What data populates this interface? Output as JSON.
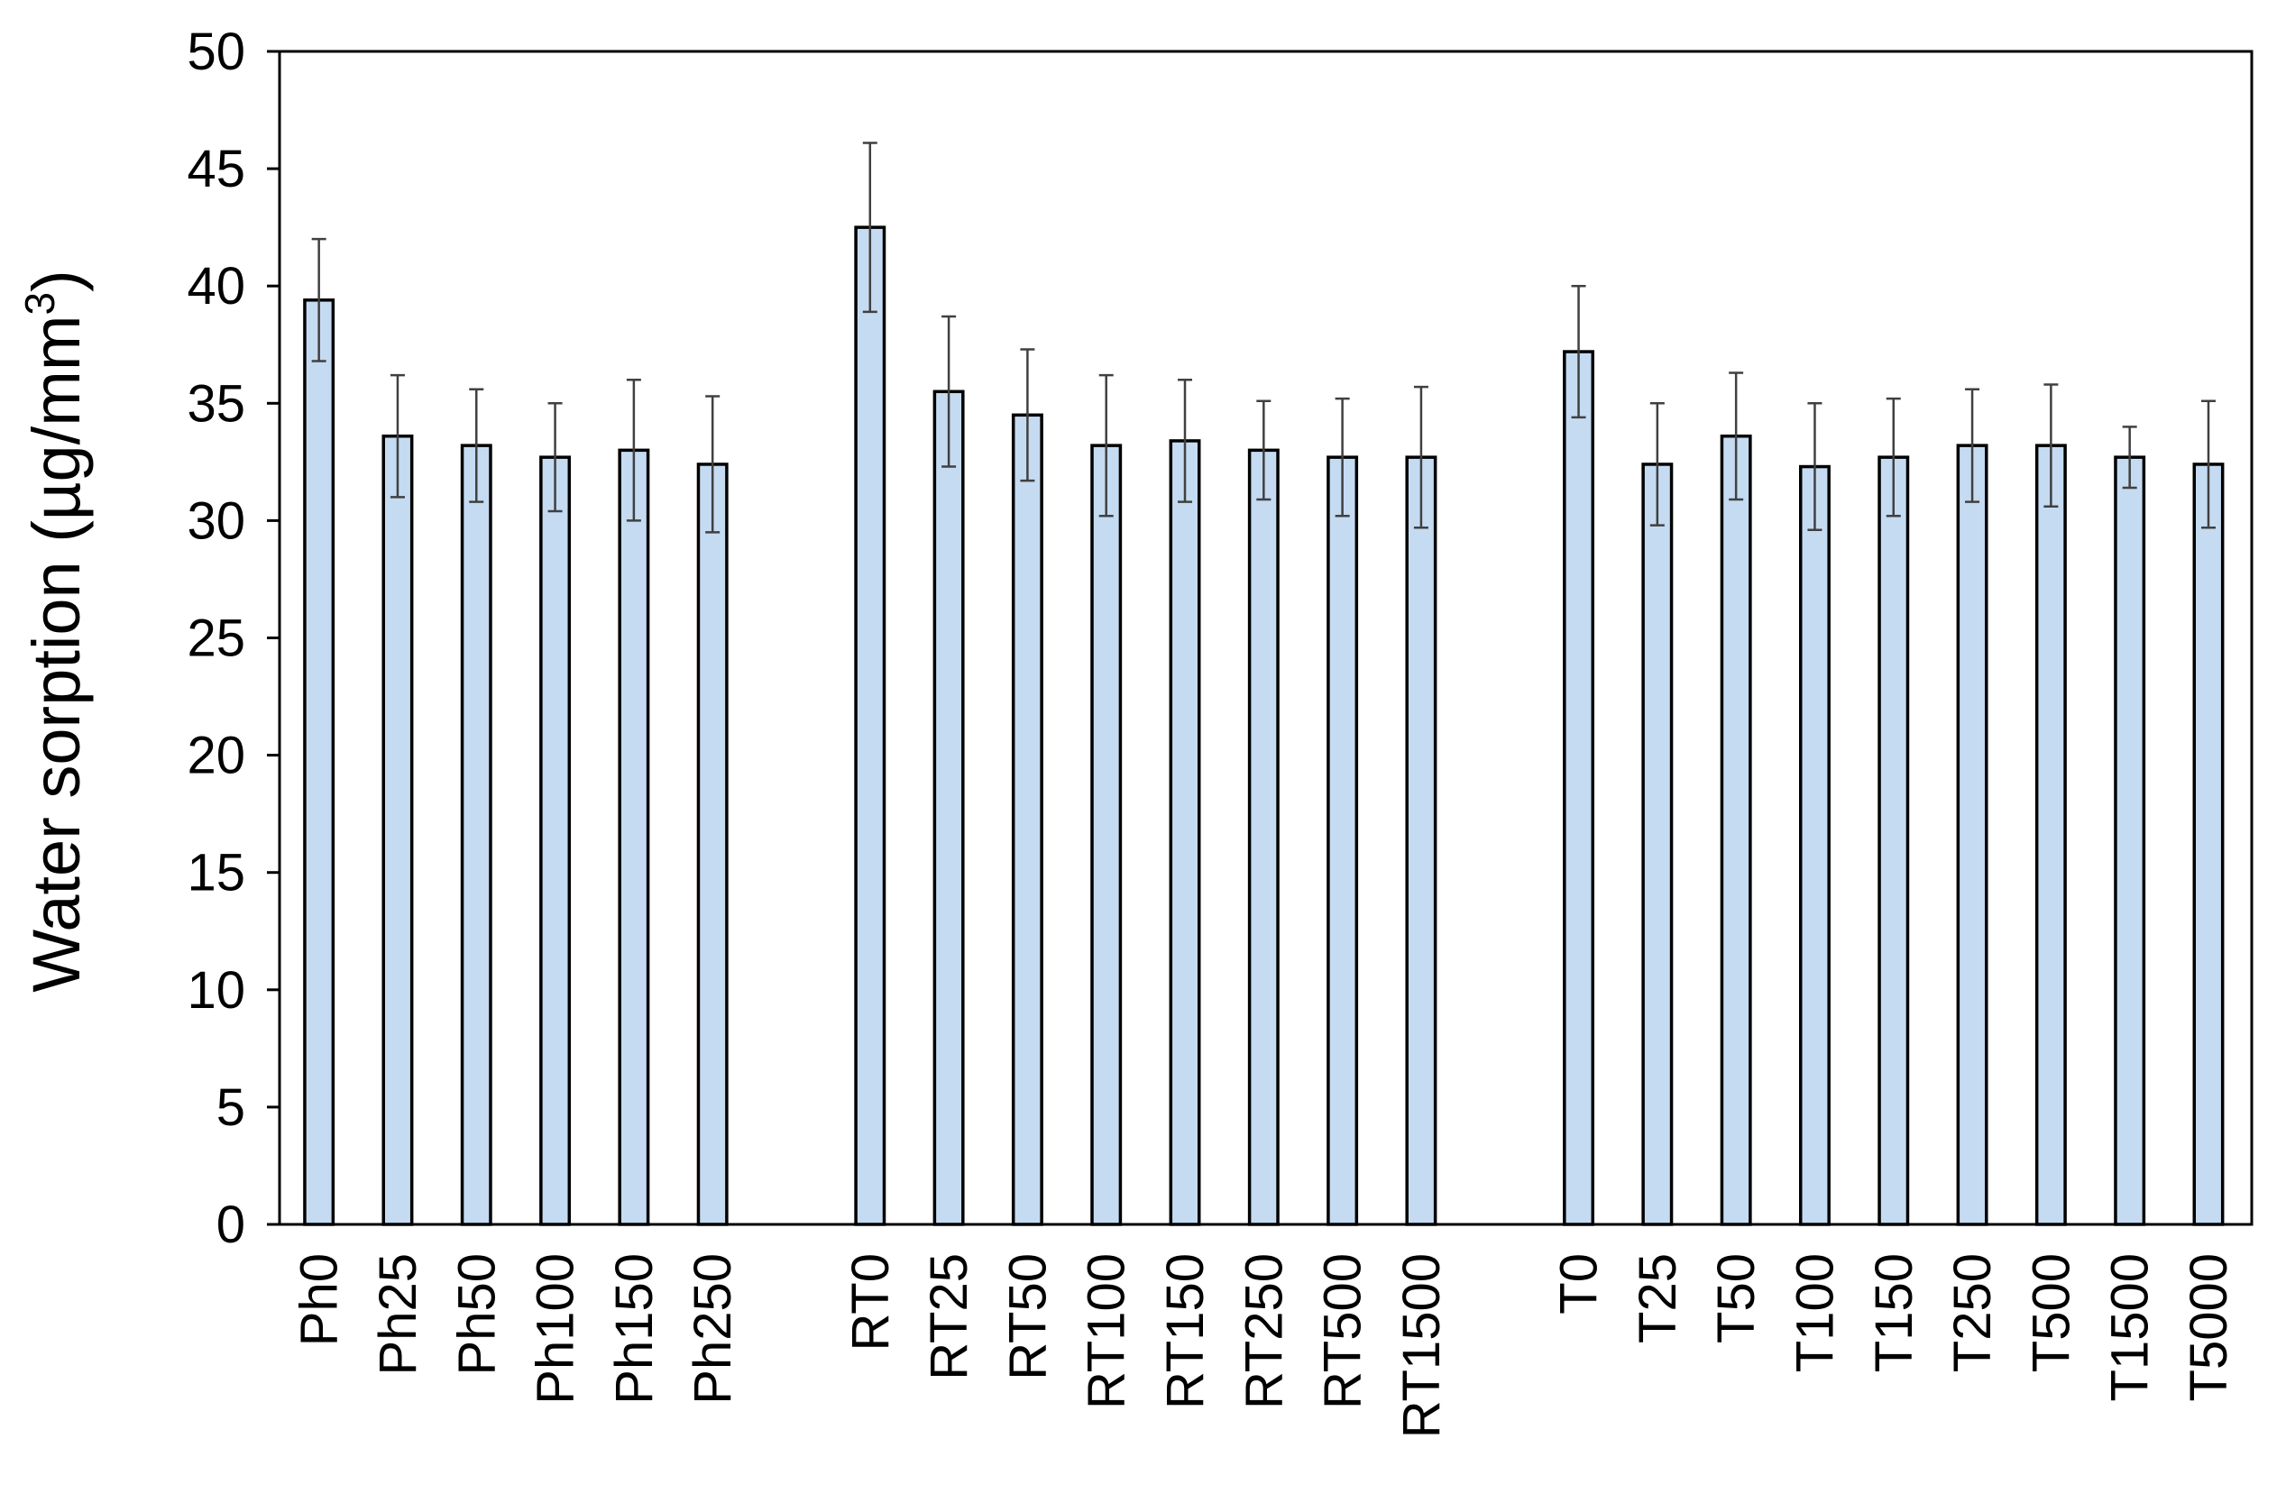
{
  "chart_data": {
    "type": "bar",
    "title": "",
    "xlabel": "",
    "ylabel": "Water sorption (µg/mm",
    "ylabel_sup": "3",
    "ylabel_tail": ")",
    "ylim": [
      0,
      50
    ],
    "yticks": [
      0,
      5,
      10,
      15,
      20,
      25,
      30,
      35,
      40,
      45,
      50
    ],
    "grid": false,
    "legend": "none",
    "bar_color": "#c5dbf2",
    "bar_edge_color": "#000000",
    "error_bar_color": "#404040",
    "groups": [
      {
        "categories": [
          "Ph0",
          "Ph25",
          "Ph50",
          "Ph100",
          "Ph150",
          "Ph250"
        ],
        "values": [
          39.4,
          33.6,
          33.2,
          32.7,
          33.0,
          32.4
        ],
        "errors": [
          2.6,
          2.6,
          2.4,
          2.3,
          3.0,
          2.9
        ]
      },
      {
        "categories": [
          "RT0",
          "RT25",
          "RT50",
          "RT100",
          "RT150",
          "RT250",
          "RT500",
          "RT1500"
        ],
        "values": [
          42.5,
          35.5,
          34.5,
          33.2,
          33.4,
          33.0,
          32.7,
          32.7
        ],
        "errors": [
          3.6,
          3.2,
          2.8,
          3.0,
          2.6,
          2.1,
          2.5,
          3.0
        ]
      },
      {
        "categories": [
          "T0",
          "T25",
          "T50",
          "T100",
          "T150",
          "T250",
          "T500",
          "T1500",
          "T5000"
        ],
        "values": [
          37.2,
          32.4,
          33.6,
          32.3,
          32.7,
          33.2,
          33.2,
          32.7,
          32.4
        ],
        "errors": [
          2.8,
          2.6,
          2.7,
          2.7,
          2.5,
          2.4,
          2.6,
          1.3,
          2.7
        ]
      }
    ]
  }
}
